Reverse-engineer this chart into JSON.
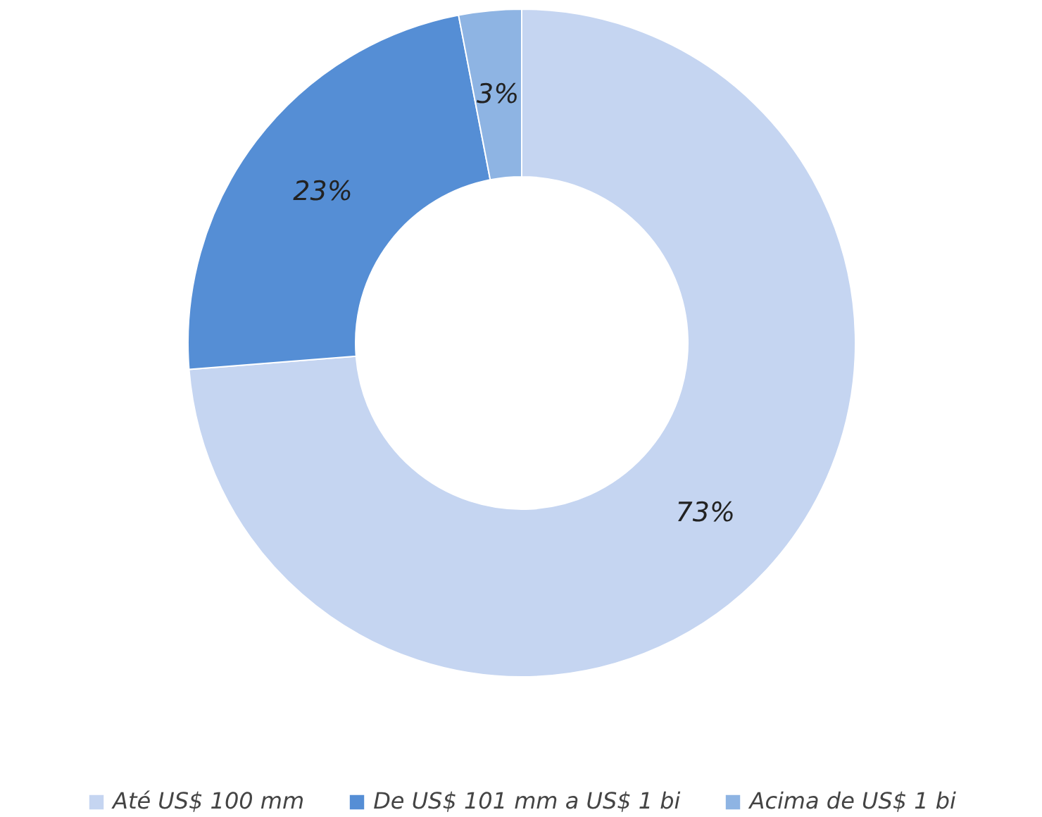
{
  "chart_data": {
    "type": "donut",
    "categories": [
      "Até US$ 100 mm",
      "De US$ 101 mm a US$ 1 bi",
      "Acima de US$ 1 bi"
    ],
    "values": [
      73,
      23,
      3
    ],
    "colors": [
      "#c5d5f1",
      "#558ed5",
      "#8eb4e3"
    ],
    "value_labels": [
      "73%",
      "23%",
      "3%"
    ],
    "legend": "bottom"
  }
}
